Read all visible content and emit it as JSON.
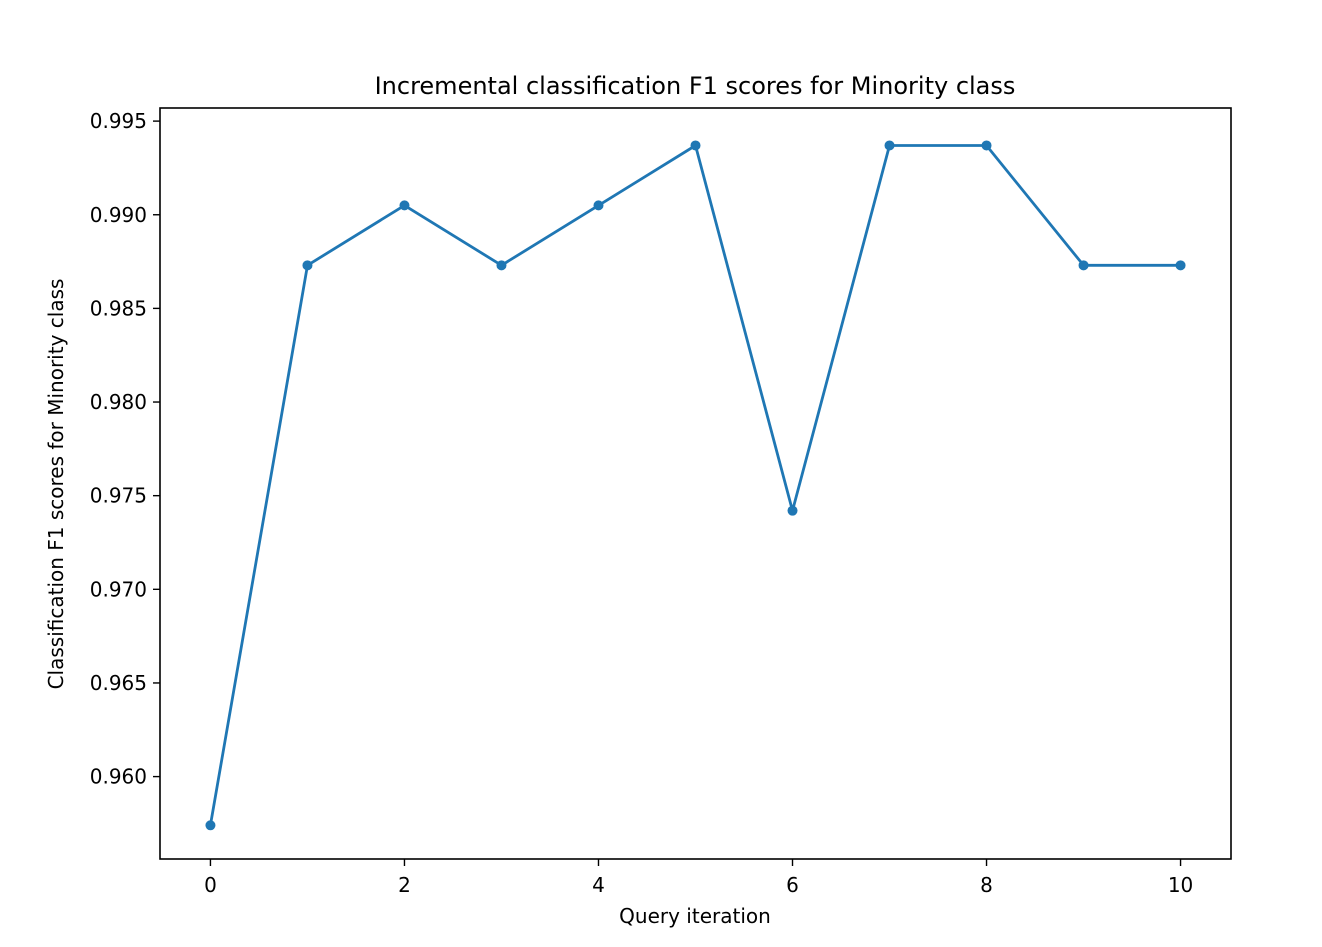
{
  "chart_data": {
    "type": "line",
    "title": "Incremental classification F1 scores for Minority class",
    "xlabel": "Query iteration",
    "ylabel": "Classification F1 scores for Minority class",
    "x": [
      0,
      1,
      2,
      3,
      4,
      5,
      6,
      7,
      8,
      9,
      10
    ],
    "series": [
      {
        "values": [
          0.9574,
          0.9873,
          0.9905,
          0.9873,
          0.9905,
          0.9937,
          0.9742,
          0.9937,
          0.9937,
          0.9873,
          0.9873
        ]
      }
    ],
    "xlim": [
      -0.52,
      10.52
    ],
    "ylim": [
      0.9556,
      0.9957
    ],
    "x_ticks": [
      0,
      2,
      4,
      6,
      8,
      10
    ],
    "x_tick_labels": [
      "0",
      "2",
      "4",
      "6",
      "8",
      "10"
    ],
    "y_ticks": [
      0.96,
      0.965,
      0.97,
      0.975,
      0.98,
      0.985,
      0.99,
      0.995
    ],
    "y_tick_labels": [
      "0.960",
      "0.965",
      "0.970",
      "0.975",
      "0.980",
      "0.985",
      "0.990",
      "0.995"
    ],
    "grid": false,
    "markers": true,
    "line_color": "#1f77b4"
  }
}
